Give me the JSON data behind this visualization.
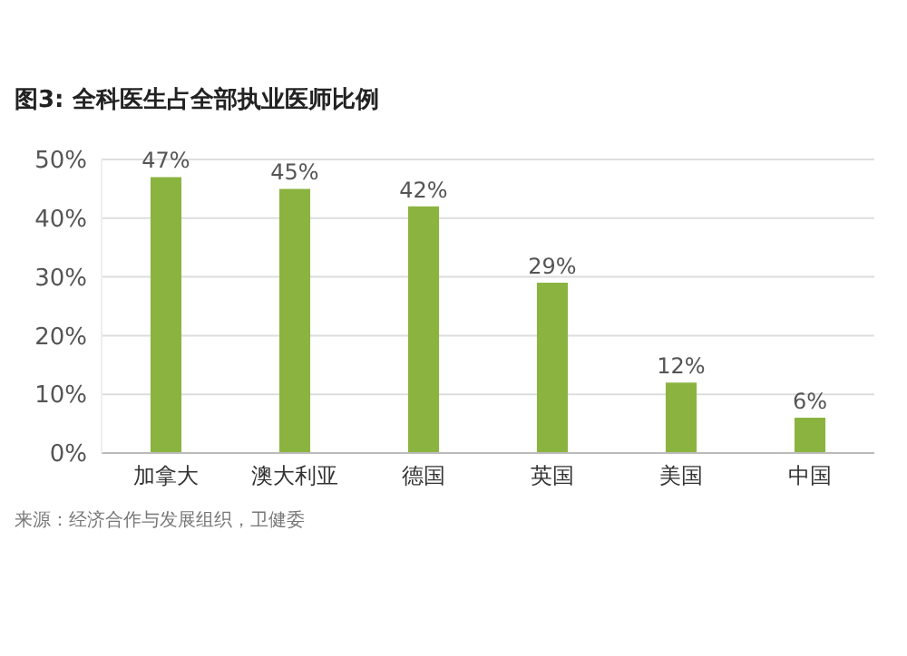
{
  "chart_data": {
    "type": "bar",
    "title": "图3: 全科医生占全部执业医师比例",
    "categories": [
      "加拿大",
      "澳大利亚",
      "德国",
      "英国",
      "美国",
      "中国"
    ],
    "values": [
      47,
      45,
      42,
      29,
      12,
      6
    ],
    "value_labels": [
      "47%",
      "45%",
      "42%",
      "29%",
      "12%",
      "6%"
    ],
    "color": "#8ab43f",
    "ylim": [
      0,
      50
    ],
    "yticks": [
      {
        "value": 0,
        "label": "0%"
      },
      {
        "value": 10,
        "label": "10%"
      },
      {
        "value": 20,
        "label": "20%"
      },
      {
        "value": 30,
        "label": "30%"
      },
      {
        "value": 40,
        "label": "40%"
      },
      {
        "value": 50,
        "label": "50%"
      }
    ],
    "grid": "y",
    "annotations": [
      "来源：经济合作与发展组织，卫健委"
    ]
  }
}
